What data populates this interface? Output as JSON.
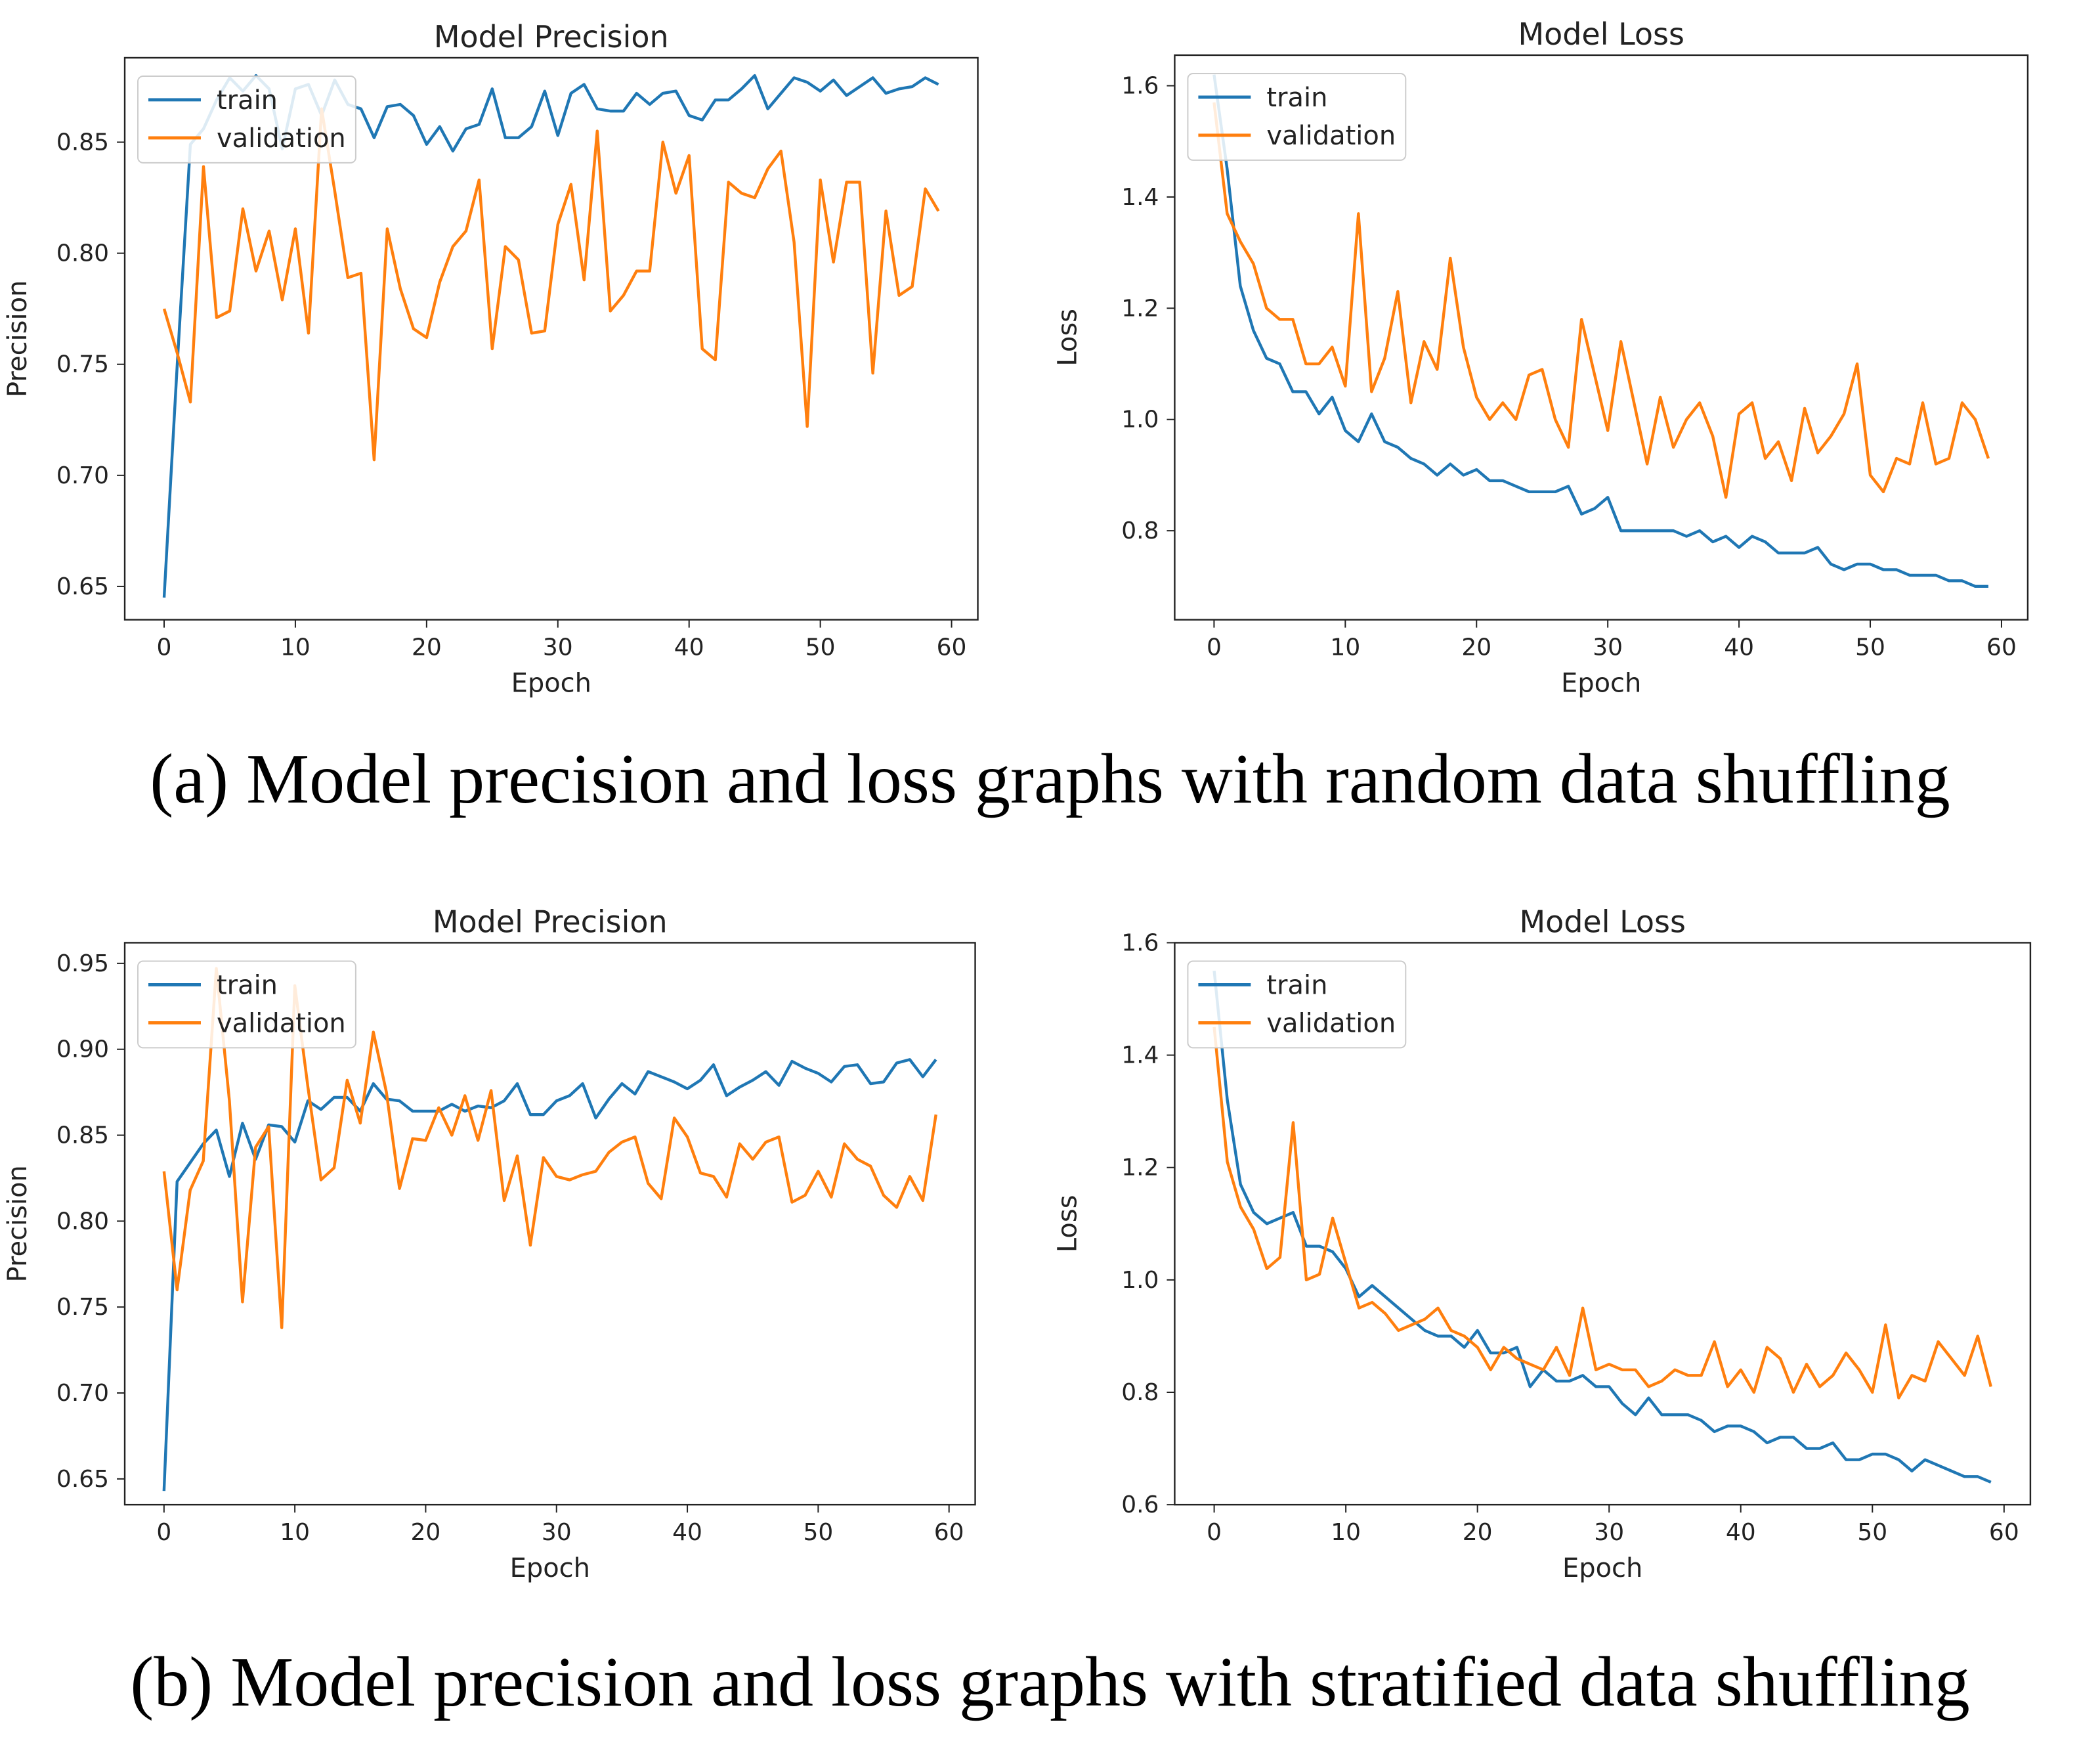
{
  "captions": {
    "a": "(a) Model precision and loss graphs with random data shuffling",
    "b": "(b) Model precision and loss graphs with stratified data shuffling"
  },
  "colors": {
    "train": "#1f77b4",
    "validation": "#ff7f0e"
  },
  "chart_data": [
    {
      "type": "line",
      "title": "Model Precision",
      "xlabel": "Epoch",
      "ylabel": "Precision",
      "xlim": [
        -3,
        62
      ],
      "ylim": [
        0.635,
        0.888
      ],
      "xticks": [
        0,
        10,
        20,
        30,
        40,
        50,
        60
      ],
      "yticks": [
        0.65,
        0.7,
        0.75,
        0.8,
        0.85
      ],
      "yformat": 2,
      "legend": "upper left",
      "series": [
        {
          "name": "train",
          "values": [
            0.645,
            0.75,
            0.849,
            0.856,
            0.869,
            0.879,
            0.873,
            0.88,
            0.874,
            0.847,
            0.874,
            0.876,
            0.862,
            0.878,
            0.867,
            0.865,
            0.852,
            0.866,
            0.867,
            0.862,
            0.849,
            0.857,
            0.846,
            0.856,
            0.858,
            0.874,
            0.852,
            0.852,
            0.857,
            0.873,
            0.853,
            0.872,
            0.876,
            0.865,
            0.864,
            0.864,
            0.872,
            0.867,
            0.872,
            0.873,
            0.862,
            0.86,
            0.869,
            0.869,
            0.874,
            0.88,
            0.865,
            0.872,
            0.879,
            0.877,
            0.873,
            0.878,
            0.871,
            0.875,
            0.879,
            0.872,
            0.874,
            0.875,
            0.879,
            0.876
          ]
        },
        {
          "name": "validation",
          "values": [
            0.775,
            0.755,
            0.733,
            0.839,
            0.771,
            0.774,
            0.82,
            0.792,
            0.81,
            0.779,
            0.811,
            0.764,
            0.865,
            0.828,
            0.789,
            0.791,
            0.707,
            0.811,
            0.784,
            0.766,
            0.762,
            0.787,
            0.803,
            0.81,
            0.833,
            0.757,
            0.803,
            0.797,
            0.764,
            0.765,
            0.813,
            0.831,
            0.788,
            0.855,
            0.774,
            0.781,
            0.792,
            0.792,
            0.85,
            0.827,
            0.844,
            0.757,
            0.752,
            0.832,
            0.827,
            0.825,
            0.838,
            0.846,
            0.805,
            0.722,
            0.833,
            0.796,
            0.832,
            0.832,
            0.746,
            0.819,
            0.781,
            0.785,
            0.829,
            0.819
          ]
        }
      ]
    },
    {
      "type": "line",
      "title": "Model Loss",
      "xlabel": "Epoch",
      "ylabel": "Loss",
      "xlim": [
        -3,
        62
      ],
      "ylim": [
        0.64,
        1.655
      ],
      "xticks": [
        0,
        10,
        20,
        30,
        40,
        50,
        60
      ],
      "yticks": [
        0.8,
        1.0,
        1.2,
        1.4,
        1.6
      ],
      "yformat": 1,
      "legend": "upper left",
      "series": [
        {
          "name": "train",
          "values": [
            1.62,
            1.45,
            1.24,
            1.16,
            1.11,
            1.1,
            1.05,
            1.05,
            1.01,
            1.04,
            0.98,
            0.96,
            1.01,
            0.96,
            0.95,
            0.93,
            0.92,
            0.9,
            0.92,
            0.9,
            0.91,
            0.89,
            0.89,
            0.88,
            0.87,
            0.87,
            0.87,
            0.88,
            0.83,
            0.84,
            0.86,
            0.8,
            0.8,
            0.8,
            0.8,
            0.8,
            0.79,
            0.8,
            0.78,
            0.79,
            0.77,
            0.79,
            0.78,
            0.76,
            0.76,
            0.76,
            0.77,
            0.74,
            0.73,
            0.74,
            0.74,
            0.73,
            0.73,
            0.72,
            0.72,
            0.72,
            0.71,
            0.71,
            0.7,
            0.7
          ]
        },
        {
          "name": "validation",
          "values": [
            1.57,
            1.37,
            1.32,
            1.28,
            1.2,
            1.18,
            1.18,
            1.1,
            1.1,
            1.13,
            1.06,
            1.37,
            1.05,
            1.11,
            1.23,
            1.03,
            1.14,
            1.09,
            1.29,
            1.13,
            1.04,
            1.0,
            1.03,
            1.0,
            1.08,
            1.09,
            1.0,
            0.95,
            1.18,
            1.08,
            0.98,
            1.14,
            1.03,
            0.92,
            1.04,
            0.95,
            1.0,
            1.03,
            0.97,
            0.86,
            1.01,
            1.03,
            0.93,
            0.96,
            0.89,
            1.02,
            0.94,
            0.97,
            1.01,
            1.1,
            0.9,
            0.87,
            0.93,
            0.92,
            1.03,
            0.92,
            0.93,
            1.03,
            1.0,
            0.93
          ]
        }
      ]
    },
    {
      "type": "line",
      "title": "Model Precision",
      "xlabel": "Epoch",
      "ylabel": "Precision",
      "xlim": [
        -3,
        62
      ],
      "ylim": [
        0.635,
        0.962
      ],
      "xticks": [
        0,
        10,
        20,
        30,
        40,
        50,
        60
      ],
      "yticks": [
        0.65,
        0.7,
        0.75,
        0.8,
        0.85,
        0.9,
        0.95
      ],
      "yformat": 2,
      "legend": "upper left",
      "series": [
        {
          "name": "train",
          "values": [
            0.643,
            0.823,
            0.834,
            0.845,
            0.853,
            0.826,
            0.857,
            0.836,
            0.856,
            0.855,
            0.846,
            0.87,
            0.865,
            0.872,
            0.872,
            0.864,
            0.88,
            0.871,
            0.87,
            0.864,
            0.864,
            0.864,
            0.868,
            0.864,
            0.867,
            0.866,
            0.87,
            0.88,
            0.862,
            0.862,
            0.87,
            0.873,
            0.88,
            0.86,
            0.871,
            0.88,
            0.874,
            0.887,
            0.884,
            0.881,
            0.877,
            0.882,
            0.891,
            0.873,
            0.878,
            0.882,
            0.887,
            0.879,
            0.893,
            0.889,
            0.886,
            0.881,
            0.89,
            0.891,
            0.88,
            0.881,
            0.892,
            0.894,
            0.884,
            0.894
          ]
        },
        {
          "name": "validation",
          "values": [
            0.829,
            0.76,
            0.818,
            0.835,
            0.947,
            0.87,
            0.753,
            0.843,
            0.855,
            0.738,
            0.937,
            0.878,
            0.824,
            0.831,
            0.882,
            0.857,
            0.91,
            0.875,
            0.819,
            0.848,
            0.847,
            0.866,
            0.85,
            0.873,
            0.847,
            0.876,
            0.812,
            0.838,
            0.786,
            0.837,
            0.826,
            0.824,
            0.827,
            0.829,
            0.84,
            0.846,
            0.849,
            0.822,
            0.813,
            0.86,
            0.849,
            0.828,
            0.826,
            0.814,
            0.845,
            0.836,
            0.846,
            0.849,
            0.811,
            0.815,
            0.829,
            0.814,
            0.845,
            0.836,
            0.832,
            0.815,
            0.808,
            0.826,
            0.812,
            0.862
          ]
        }
      ]
    },
    {
      "type": "line",
      "title": "Model Loss",
      "xlabel": "Epoch",
      "ylabel": "Loss",
      "xlim": [
        -3,
        62
      ],
      "ylim": [
        0.6,
        1.6
      ],
      "xticks": [
        0,
        10,
        20,
        30,
        40,
        50,
        60
      ],
      "yticks": [
        0.6,
        0.8,
        1.0,
        1.2,
        1.4,
        1.6
      ],
      "yformat": 1,
      "legend": "upper left",
      "series": [
        {
          "name": "train",
          "values": [
            1.55,
            1.32,
            1.17,
            1.12,
            1.1,
            1.11,
            1.12,
            1.06,
            1.06,
            1.05,
            1.02,
            0.97,
            0.99,
            0.97,
            0.95,
            0.93,
            0.91,
            0.9,
            0.9,
            0.88,
            0.91,
            0.87,
            0.87,
            0.88,
            0.81,
            0.84,
            0.82,
            0.82,
            0.83,
            0.81,
            0.81,
            0.78,
            0.76,
            0.79,
            0.76,
            0.76,
            0.76,
            0.75,
            0.73,
            0.74,
            0.74,
            0.73,
            0.71,
            0.72,
            0.72,
            0.7,
            0.7,
            0.71,
            0.68,
            0.68,
            0.69,
            0.69,
            0.68,
            0.66,
            0.68,
            0.67,
            0.66,
            0.65,
            0.65,
            0.64
          ]
        },
        {
          "name": "validation",
          "values": [
            1.45,
            1.21,
            1.13,
            1.09,
            1.02,
            1.04,
            1.28,
            1.0,
            1.01,
            1.11,
            1.03,
            0.95,
            0.96,
            0.94,
            0.91,
            0.92,
            0.93,
            0.95,
            0.91,
            0.9,
            0.88,
            0.84,
            0.88,
            0.86,
            0.85,
            0.84,
            0.88,
            0.83,
            0.95,
            0.84,
            0.85,
            0.84,
            0.84,
            0.81,
            0.82,
            0.84,
            0.83,
            0.83,
            0.89,
            0.81,
            0.84,
            0.8,
            0.88,
            0.86,
            0.8,
            0.85,
            0.81,
            0.83,
            0.87,
            0.84,
            0.8,
            0.92,
            0.79,
            0.83,
            0.82,
            0.89,
            0.86,
            0.83,
            0.9,
            0.81
          ]
        }
      ]
    }
  ]
}
